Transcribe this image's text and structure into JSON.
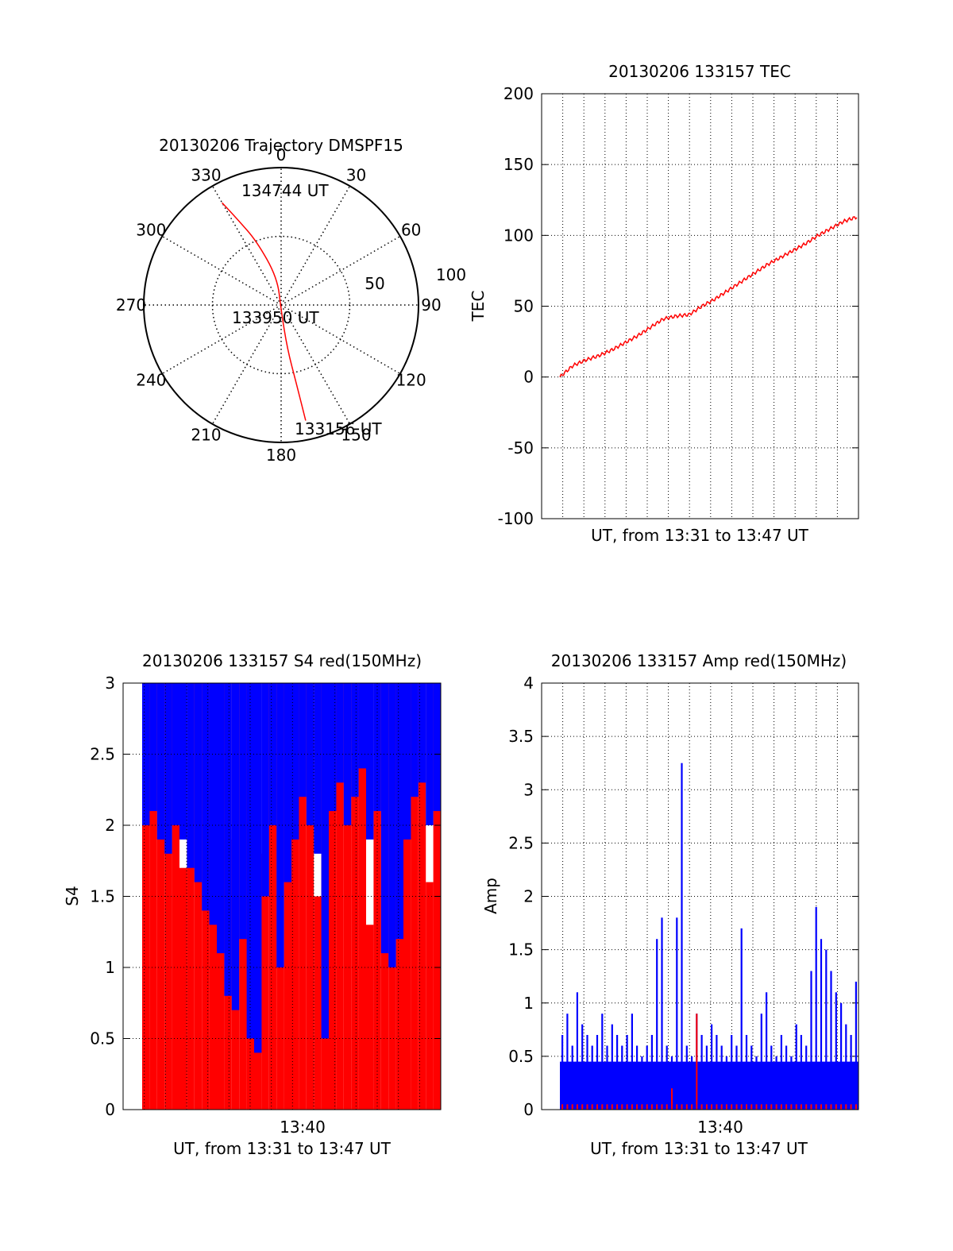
{
  "colors": {
    "primary": "#ff0000",
    "secondary": "#0000ff",
    "axis": "#000000"
  },
  "chart_data": [
    {
      "type": "polar",
      "title": "20130206 Trajectory DMSPF15",
      "angle_labels": [
        "0",
        "30",
        "60",
        "90",
        "120",
        "150",
        "180",
        "210",
        "240",
        "270",
        "300",
        "330"
      ],
      "radius_labels": [
        "50",
        "100"
      ],
      "rlim": [
        0,
        100
      ],
      "grid": true,
      "track": {
        "points": [
          [
            330,
            86
          ],
          [
            333,
            70
          ],
          [
            339,
            50
          ],
          [
            352,
            20
          ],
          [
            180,
            4
          ],
          [
            172,
            32
          ],
          [
            169,
            58
          ],
          [
            168,
            86
          ]
        ]
      },
      "annotations": [
        "134744 UT",
        "133950 UT",
        "133156 UT"
      ]
    },
    {
      "type": "line",
      "title": "20130206 133157 TEC",
      "xlabel": "UT, from 13:31 to 13:47 UT",
      "ylabel": "TEC",
      "ylim": [
        -100,
        200
      ],
      "yticks": [
        "-100",
        "-50",
        "0",
        "50",
        "100",
        "150",
        "200"
      ],
      "grid": true,
      "series": [
        {
          "values": [
            0,
            8,
            12,
            15,
            19,
            24,
            29,
            35,
            41,
            43,
            44,
            50,
            55,
            61,
            67,
            73,
            79,
            84,
            89,
            94,
            100,
            105,
            110,
            113
          ]
        }
      ]
    },
    {
      "type": "bar",
      "title": "20130206 133157 S4 red(150MHz)",
      "xlabel": "UT, from 13:31 to 13:47 UT",
      "ylabel": "S4",
      "ylim": [
        0,
        3
      ],
      "yticks": [
        "0",
        "0.5",
        "1",
        "1.5",
        "2",
        "2.5",
        "3"
      ],
      "xticks": [
        "13:40"
      ],
      "grid": true,
      "series": [
        {
          "values": [
            3.0,
            3.0,
            3.0,
            3.0,
            3.0,
            1.7,
            3.0,
            3.0,
            3.0,
            3.0,
            3.0,
            1.9,
            3.0,
            3.0,
            3.0,
            1.8,
            3.0,
            3.0,
            3.0,
            3.0,
            3.0,
            3.0,
            3.0,
            1.5,
            3.0,
            3.0,
            3.0,
            3.0,
            3.0,
            3.0,
            1.3,
            3.0,
            3.0,
            3.0,
            3.0,
            3.0,
            3.0,
            3.0,
            1.6,
            3.0
          ]
        },
        {
          "values": [
            2.0,
            2.1,
            1.9,
            1.8,
            2.0,
            1.9,
            1.7,
            1.6,
            1.4,
            1.3,
            1.1,
            0.8,
            0.7,
            1.2,
            0.5,
            0.4,
            1.5,
            2.0,
            1.0,
            1.6,
            1.9,
            2.2,
            2.0,
            1.8,
            0.5,
            2.1,
            2.3,
            2.0,
            2.2,
            2.4,
            1.9,
            2.1,
            1.1,
            1.0,
            1.2,
            1.9,
            2.2,
            2.3,
            2.0,
            2.1
          ]
        }
      ]
    },
    {
      "type": "bar",
      "title": "20130206 133157 Amp red(150MHz)",
      "xlabel": "UT, from 13:31 to 13:47 UT",
      "ylabel": "Amp",
      "ylim": [
        0,
        4
      ],
      "yticks": [
        "0",
        "0.5",
        "1",
        "1.5",
        "2",
        "2.5",
        "3",
        "3.5",
        "4"
      ],
      "xticks": [
        "13:40"
      ],
      "grid": true,
      "series": [
        {
          "values": [
            0.05,
            0.05,
            0.05,
            0.05,
            0.05,
            0.05,
            0.05,
            0.05,
            0.05,
            0.05,
            0.05,
            0.05,
            0.05,
            0.05,
            0.05,
            0.05,
            0.05,
            0.05,
            0.05,
            0.05,
            0.05,
            0.05,
            0.2,
            0.05,
            0.05,
            0.05,
            0.05,
            0.9,
            0.05,
            0.05,
            0.05,
            0.05,
            0.05,
            0.05,
            0.05,
            0.05,
            0.05,
            0.05,
            0.05,
            0.05,
            0.05,
            0.05,
            0.05,
            0.05,
            0.05,
            0.05,
            0.05,
            0.05,
            0.05,
            0.05,
            0.05,
            0.05,
            0.05,
            0.05,
            0.05,
            0.05,
            0.05,
            0.05,
            0.05,
            0.05
          ]
        },
        {
          "values": [
            0.7,
            0.9,
            0.6,
            1.1,
            0.8,
            0.7,
            0.6,
            0.7,
            0.9,
            0.6,
            0.8,
            0.7,
            0.6,
            0.7,
            0.9,
            0.6,
            0.5,
            0.6,
            0.7,
            1.6,
            1.8,
            0.6,
            0.5,
            1.8,
            3.25,
            0.6,
            0.5,
            0.9,
            0.7,
            0.6,
            0.8,
            0.7,
            0.6,
            0.5,
            0.7,
            0.6,
            1.7,
            0.7,
            0.6,
            0.5,
            0.9,
            1.1,
            0.6,
            0.5,
            0.7,
            0.6,
            0.5,
            0.8,
            0.7,
            0.6,
            1.3,
            1.9,
            1.6,
            1.5,
            1.3,
            1.1,
            1.0,
            0.8,
            0.7,
            1.2
          ]
        }
      ]
    }
  ]
}
